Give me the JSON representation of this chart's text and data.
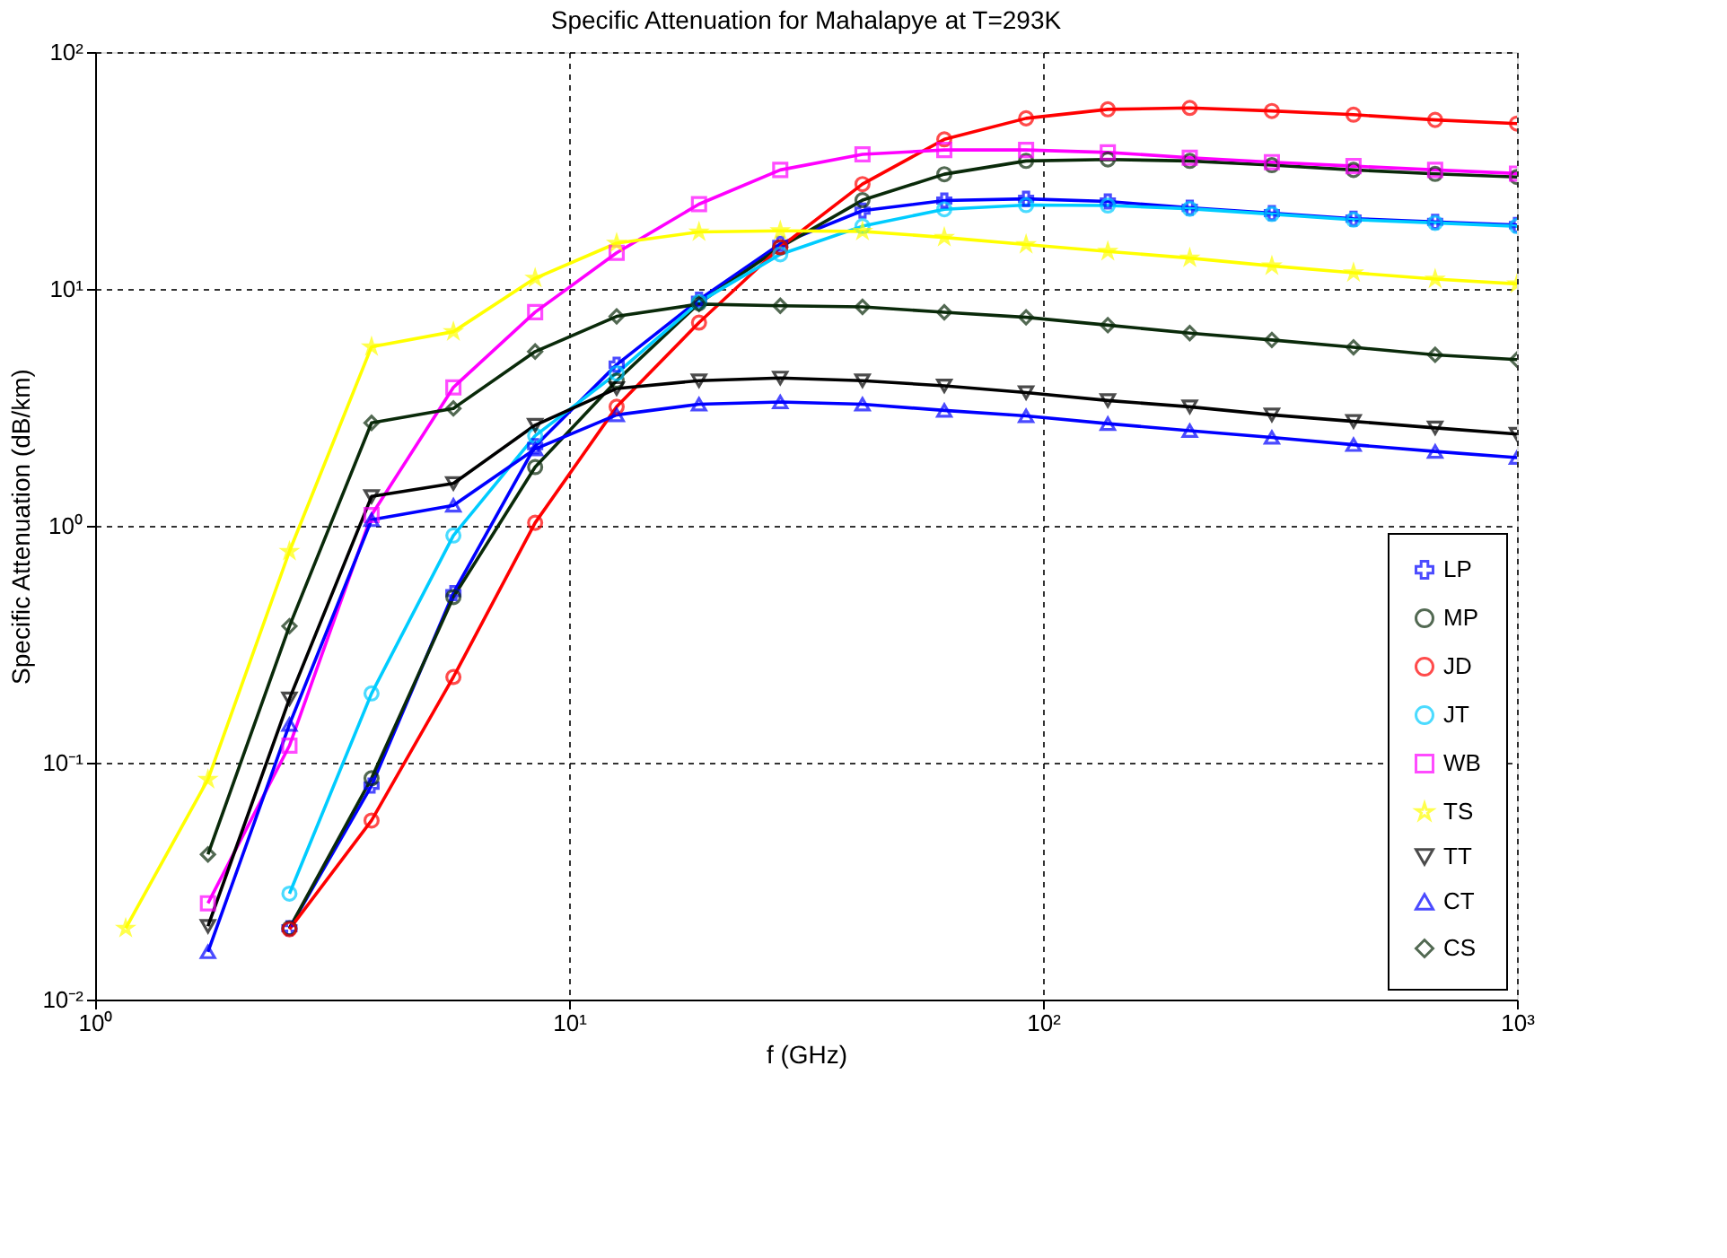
{
  "chart_data": {
    "type": "line",
    "title": "Specific Attenuation for Mahalapye at T=293K",
    "xlabel": "f (GHz)",
    "ylabel": "Specific Attenuation  (dB/km)",
    "x": [
      1.16,
      1.73,
      2.57,
      3.83,
      5.7,
      8.48,
      12.6,
      18.8,
      27.9,
      41.6,
      61.9,
      92.1,
      137,
      204,
      304,
      452,
      672,
      1000
    ],
    "log": "xy",
    "xlim": [
      1,
      1000
    ],
    "ylim": [
      0.01,
      100
    ],
    "xticks": [
      {
        "value": 1,
        "label": "10⁰"
      },
      {
        "value": 10,
        "label": "10¹"
      },
      {
        "value": 100,
        "label": "10²"
      },
      {
        "value": 1000,
        "label": "10³"
      }
    ],
    "yticks": [
      {
        "value": 0.01,
        "label": "10⁻²"
      },
      {
        "value": 0.1,
        "label": "10⁻¹"
      },
      {
        "value": 1,
        "label": "10⁰"
      },
      {
        "value": 10,
        "label": "10¹"
      },
      {
        "value": 100,
        "label": "10²"
      }
    ],
    "grid": true,
    "legend": "bottom right",
    "line_style": "solid",
    "series": [
      {
        "name": "LP",
        "color": "#0000ff",
        "marker": "cross",
        "values": [
          null,
          null,
          0.02,
          0.08,
          0.52,
          2.17,
          4.79,
          9.0,
          15.5,
          21.4,
          23.6,
          24.0,
          23.4,
          22.0,
          20.9,
          19.8,
          19.2,
          18.6
        ]
      },
      {
        "name": "MP",
        "color": "#0a2a0a",
        "marker": "circle",
        "values": [
          null,
          null,
          0.02,
          0.086,
          0.5,
          1.77,
          4.1,
          8.7,
          15.0,
          23.7,
          30.5,
          34.7,
          35.2,
          34.7,
          33.3,
          31.8,
          30.6,
          29.7
        ]
      },
      {
        "name": "JD",
        "color": "#ff0000",
        "marker": "circle",
        "values": [
          null,
          null,
          0.0198,
          0.057,
          0.23,
          1.03,
          3.18,
          7.21,
          15.0,
          27.7,
          42.8,
          52.5,
          57.3,
          58.1,
          56.4,
          54.4,
          51.7,
          49.9
        ]
      },
      {
        "name": "JT",
        "color": "#00ccff",
        "marker": "circle",
        "values": [
          null,
          null,
          0.028,
          0.196,
          0.91,
          2.4,
          4.4,
          8.8,
          14.0,
          18.4,
          21.7,
          22.6,
          22.5,
          21.8,
          20.7,
          19.6,
          19.0,
          18.4
        ]
      },
      {
        "name": "WB",
        "color": "#ff00ff",
        "marker": "square",
        "values": [
          null,
          0.0255,
          0.118,
          1.11,
          3.84,
          7.98,
          14.2,
          22.8,
          31.8,
          37.0,
          38.6,
          38.6,
          37.7,
          35.8,
          34.3,
          33.0,
          31.8,
          30.7
        ]
      },
      {
        "name": "TS",
        "color": "#ffff00",
        "marker": "star",
        "values": [
          0.02,
          0.085,
          0.78,
          5.7,
          6.6,
          11.1,
          15.6,
          17.4,
          17.6,
          17.5,
          16.5,
          15.4,
          14.4,
          13.5,
          12.5,
          11.7,
          11.0,
          10.5
        ]
      },
      {
        "name": "TT",
        "color": "#000000",
        "marker": "triangle-down",
        "values": [
          null,
          0.0204,
          0.186,
          1.33,
          1.51,
          2.66,
          3.8,
          4.1,
          4.21,
          4.1,
          3.9,
          3.65,
          3.38,
          3.18,
          2.94,
          2.76,
          2.59,
          2.44
        ]
      },
      {
        "name": "CT",
        "color": "#0000ff",
        "marker": "triangle",
        "values": [
          null,
          0.0159,
          0.145,
          1.06,
          1.22,
          2.11,
          2.94,
          3.26,
          3.33,
          3.26,
          3.07,
          2.91,
          2.7,
          2.52,
          2.36,
          2.2,
          2.06,
          1.94
        ]
      },
      {
        "name": "CS",
        "color": "#0a2a0a",
        "marker": "diamond",
        "values": [
          null,
          0.041,
          0.377,
          2.72,
          3.13,
          5.44,
          7.66,
          8.63,
          8.49,
          8.4,
          7.97,
          7.59,
          7.03,
          6.51,
          6.09,
          5.67,
          5.27,
          5.03
        ]
      }
    ]
  }
}
